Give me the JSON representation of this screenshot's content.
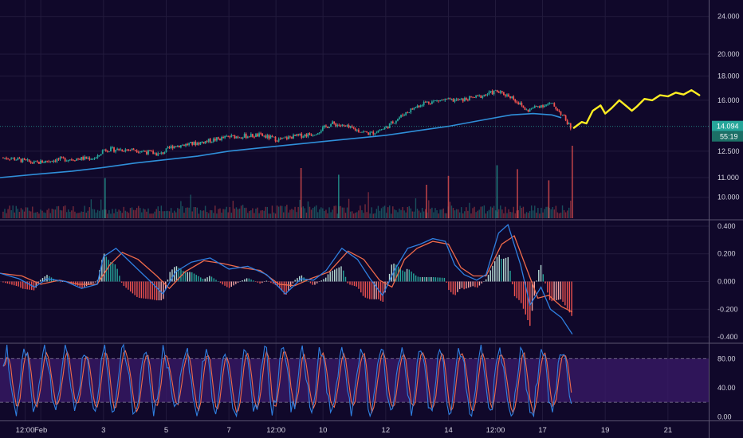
{
  "colors": {
    "background": "#10082a",
    "grid": "#221a3d",
    "up": "#26a69a",
    "down": "#ef5350",
    "ma": "#2f8fd9",
    "macd": "#2f7fe0",
    "signal": "#ef6a4a",
    "drawing": "#ffee22",
    "stoch_k": "#2f7fe0",
    "stoch_d": "#ef6a4a",
    "stoch_band": "#3a1a6a",
    "price_tag": "#26a69a"
  },
  "chart_data": [
    {
      "type": "candlestick",
      "panel": "price",
      "scale": "log",
      "ylim": [
        9.0,
        26.0
      ],
      "y_ticks": [
        "24.000",
        "20.000",
        "18.000",
        "16.000",
        "12.500",
        "11.000",
        "10.000"
      ],
      "y_tick_values": [
        24,
        20,
        18,
        16,
        12.5,
        11,
        10
      ],
      "x_ticks": [
        {
          "label": "12:00",
          "x": 0.5
        },
        {
          "label": "Feb",
          "x": 1.0
        },
        {
          "label": "3",
          "x": 3
        },
        {
          "label": "5",
          "x": 5
        },
        {
          "label": "7",
          "x": 7
        },
        {
          "label": "12:00",
          "x": 8.5
        },
        {
          "label": "10",
          "x": 10
        },
        {
          "label": "12",
          "x": 12
        },
        {
          "label": "14",
          "x": 14
        },
        {
          "label": "12:00",
          "x": 15.5
        },
        {
          "label": "17",
          "x": 17
        },
        {
          "label": "19",
          "x": 19
        },
        {
          "label": "21",
          "x": 21
        }
      ],
      "xlim": [
        -0.3,
        22.3
      ],
      "close_path": [
        [
          0,
          12.1
        ],
        [
          0.8,
          11.8
        ],
        [
          1.5,
          12.0
        ],
        [
          2.8,
          12.1
        ],
        [
          3.0,
          12.6
        ],
        [
          4.0,
          12.6
        ],
        [
          4.8,
          12.3
        ],
        [
          5.2,
          12.8
        ],
        [
          6.0,
          13.0
        ],
        [
          7.0,
          13.4
        ],
        [
          8.0,
          13.5
        ],
        [
          8.6,
          13.2
        ],
        [
          9.0,
          13.4
        ],
        [
          9.7,
          13.6
        ],
        [
          10.3,
          14.3
        ],
        [
          11.0,
          13.9
        ],
        [
          11.5,
          13.6
        ],
        [
          12.0,
          14.0
        ],
        [
          12.6,
          15.0
        ],
        [
          13.2,
          15.8
        ],
        [
          13.8,
          16.0
        ],
        [
          14.4,
          16.0
        ],
        [
          15.0,
          16.3
        ],
        [
          15.5,
          16.7
        ],
        [
          16.0,
          16.3
        ],
        [
          16.5,
          15.2
        ],
        [
          16.9,
          15.6
        ],
        [
          17.3,
          15.7
        ],
        [
          17.6,
          15.0
        ],
        [
          17.9,
          14.0
        ]
      ],
      "ma_path": [
        [
          -0.3,
          11.0
        ],
        [
          1.0,
          11.2
        ],
        [
          2.0,
          11.35
        ],
        [
          3.0,
          11.55
        ],
        [
          4.0,
          11.8
        ],
        [
          5.0,
          12.0
        ],
        [
          6.0,
          12.2
        ],
        [
          7.0,
          12.5
        ],
        [
          8.0,
          12.7
        ],
        [
          9.0,
          12.9
        ],
        [
          10.0,
          13.1
        ],
        [
          11.0,
          13.3
        ],
        [
          12.0,
          13.5
        ],
        [
          13.0,
          13.8
        ],
        [
          14.0,
          14.1
        ],
        [
          15.0,
          14.5
        ],
        [
          16.0,
          14.9
        ],
        [
          16.7,
          15.0
        ],
        [
          17.3,
          14.9
        ],
        [
          17.6,
          14.7
        ]
      ],
      "current_price": "14.094",
      "current_price_value": 14.094,
      "countdown": "55:19",
      "drawing_path": [
        [
          18.0,
          14.0
        ],
        [
          18.25,
          14.4
        ],
        [
          18.4,
          14.3
        ],
        [
          18.6,
          15.2
        ],
        [
          18.85,
          15.6
        ],
        [
          19.0,
          15.0
        ],
        [
          19.2,
          15.4
        ],
        [
          19.45,
          16.0
        ],
        [
          19.7,
          15.5
        ],
        [
          19.85,
          15.2
        ],
        [
          20.0,
          15.5
        ],
        [
          20.25,
          16.1
        ],
        [
          20.5,
          16.0
        ],
        [
          20.75,
          16.4
        ],
        [
          21.0,
          16.3
        ],
        [
          21.25,
          16.6
        ],
        [
          21.5,
          16.45
        ],
        [
          21.75,
          16.8
        ],
        [
          22.0,
          16.4
        ]
      ]
    },
    {
      "type": "bar",
      "panel": "volume",
      "description_free": true,
      "spikes": [
        {
          "x": 3.05,
          "value": 0.72,
          "dir": "up"
        },
        {
          "x": 9.3,
          "value": 0.9,
          "dir": "down"
        },
        {
          "x": 10.5,
          "value": 0.78,
          "dir": "up"
        },
        {
          "x": 13.3,
          "value": 0.6,
          "dir": "down"
        },
        {
          "x": 14.0,
          "value": 0.76,
          "dir": "down"
        },
        {
          "x": 15.55,
          "value": 0.95,
          "dir": "up"
        },
        {
          "x": 16.2,
          "value": 0.88,
          "dir": "down"
        },
        {
          "x": 17.2,
          "value": 0.68,
          "dir": "down"
        },
        {
          "x": 17.95,
          "value": 1.3,
          "dir": "down"
        }
      ]
    },
    {
      "type": "line",
      "panel": "macd",
      "ylim": [
        -0.44,
        0.44
      ],
      "y_ticks": [
        "0.400",
        "0.200",
        "0.000",
        "-0.200",
        "-0.400"
      ],
      "y_tick_values": [
        0.4,
        0.2,
        0.0,
        -0.2,
        -0.4
      ],
      "macd_path": [
        [
          -0.3,
          0.06
        ],
        [
          0.3,
          0.02
        ],
        [
          0.8,
          -0.04
        ],
        [
          1.2,
          0.02
        ],
        [
          1.8,
          0.0
        ],
        [
          2.3,
          -0.05
        ],
        [
          2.8,
          -0.02
        ],
        [
          3.0,
          0.18
        ],
        [
          3.4,
          0.24
        ],
        [
          3.9,
          0.13
        ],
        [
          4.5,
          0.0
        ],
        [
          4.9,
          -0.09
        ],
        [
          5.3,
          0.07
        ],
        [
          5.8,
          0.14
        ],
        [
          6.4,
          0.17
        ],
        [
          7.0,
          0.09
        ],
        [
          7.6,
          0.11
        ],
        [
          8.2,
          0.05
        ],
        [
          8.8,
          -0.09
        ],
        [
          9.3,
          0.02
        ],
        [
          9.7,
          0.01
        ],
        [
          10.1,
          0.08
        ],
        [
          10.6,
          0.24
        ],
        [
          11.1,
          0.16
        ],
        [
          11.5,
          0.02
        ],
        [
          11.9,
          -0.1
        ],
        [
          12.3,
          0.09
        ],
        [
          12.7,
          0.24
        ],
        [
          13.1,
          0.27
        ],
        [
          13.5,
          0.31
        ],
        [
          13.9,
          0.29
        ],
        [
          14.2,
          0.12
        ],
        [
          14.5,
          0.05
        ],
        [
          14.9,
          0.01
        ],
        [
          15.2,
          0.05
        ],
        [
          15.6,
          0.35
        ],
        [
          15.9,
          0.41
        ],
        [
          16.3,
          0.12
        ],
        [
          16.6,
          -0.17
        ],
        [
          16.95,
          -0.04
        ],
        [
          17.25,
          -0.2
        ],
        [
          17.6,
          -0.26
        ],
        [
          17.95,
          -0.38
        ]
      ],
      "signal_path": [
        [
          -0.3,
          0.06
        ],
        [
          0.4,
          0.04
        ],
        [
          1.0,
          -0.02
        ],
        [
          1.6,
          0.01
        ],
        [
          2.2,
          -0.02
        ],
        [
          2.8,
          -0.02
        ],
        [
          3.2,
          0.12
        ],
        [
          3.6,
          0.21
        ],
        [
          4.1,
          0.16
        ],
        [
          4.7,
          0.04
        ],
        [
          5.1,
          -0.05
        ],
        [
          5.6,
          0.07
        ],
        [
          6.2,
          0.15
        ],
        [
          6.8,
          0.13
        ],
        [
          7.4,
          0.1
        ],
        [
          8.0,
          0.08
        ],
        [
          8.6,
          -0.02
        ],
        [
          9.1,
          -0.03
        ],
        [
          9.6,
          0.02
        ],
        [
          10.2,
          0.07
        ],
        [
          10.8,
          0.22
        ],
        [
          11.3,
          0.16
        ],
        [
          11.8,
          0.01
        ],
        [
          12.2,
          -0.04
        ],
        [
          12.6,
          0.16
        ],
        [
          13.0,
          0.24
        ],
        [
          13.5,
          0.29
        ],
        [
          14.0,
          0.27
        ],
        [
          14.4,
          0.1
        ],
        [
          14.8,
          0.04
        ],
        [
          15.2,
          0.04
        ],
        [
          15.7,
          0.27
        ],
        [
          16.1,
          0.33
        ],
        [
          16.5,
          0.09
        ],
        [
          16.85,
          -0.12
        ],
        [
          17.2,
          -0.1
        ],
        [
          17.6,
          -0.18
        ],
        [
          17.95,
          -0.22
        ]
      ]
    },
    {
      "type": "line",
      "panel": "stochastic",
      "ylim": [
        -5,
        100
      ],
      "y_ticks": [
        "80.00",
        "40.00",
        "0.00"
      ],
      "y_tick_values": [
        80,
        40,
        0
      ],
      "band": [
        20,
        80
      ]
    }
  ]
}
